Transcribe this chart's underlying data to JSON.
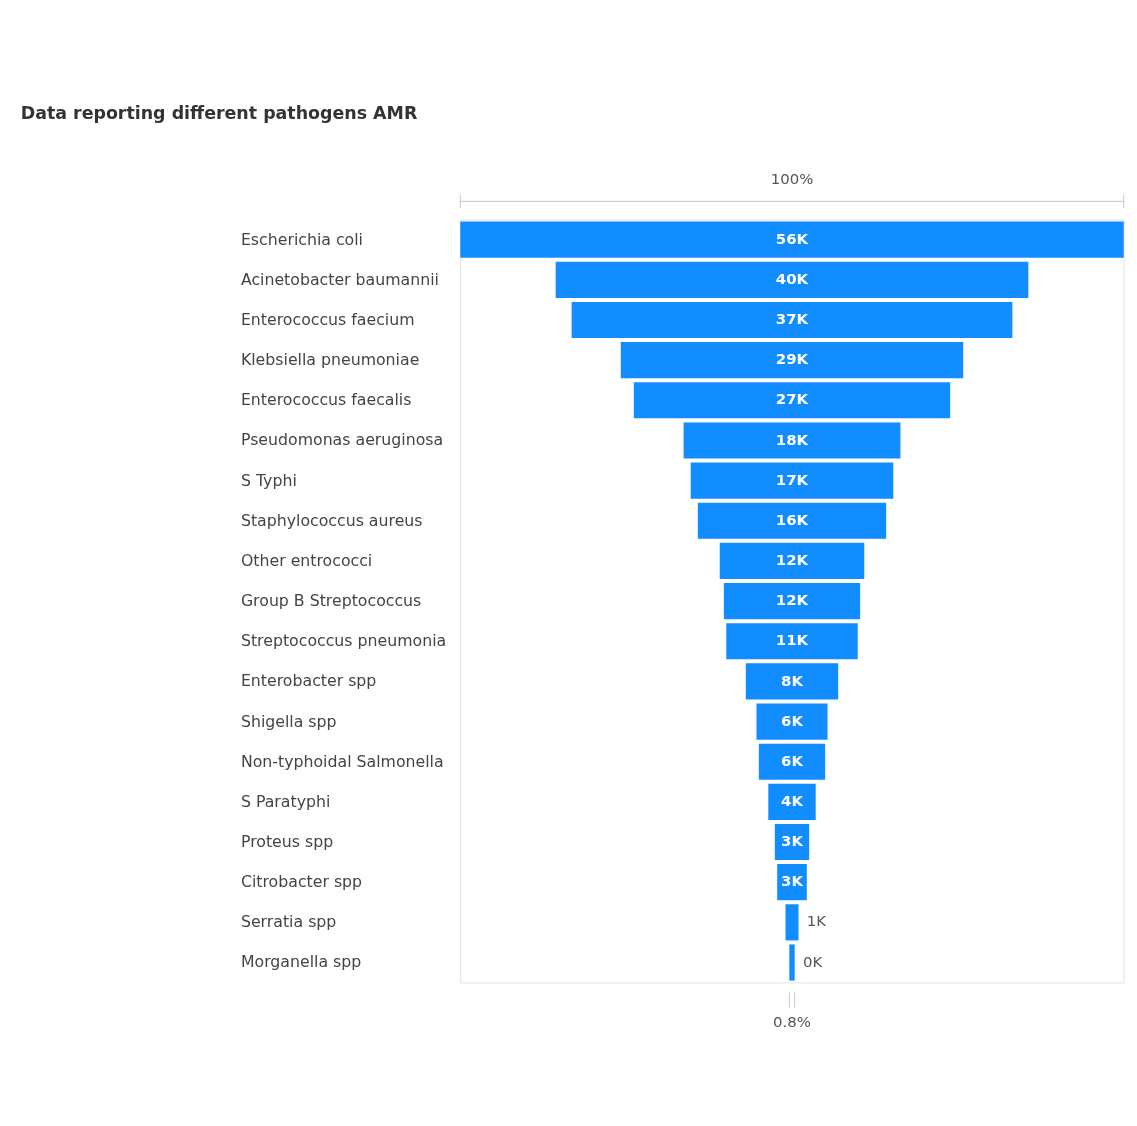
{
  "chart_data": {
    "type": "other",
    "title": "Data reporting different pathogens AMR",
    "categories": [
      "Escherichia coli",
      "Acinetobacter baumannii",
      "Enterococcus faecium",
      "Klebsiella pneumoniae",
      "Enterococcus faecalis",
      "Pseudomonas aeruginosa",
      "S Typhi",
      "Staphylococcus aureus",
      "Other entrococci",
      "Group B Streptococcus",
      "Streptococcus pneumonia",
      "Enterobacter spp",
      "Shigella spp",
      "Non-typhoidal Salmonella",
      "S Paratyphi",
      "Proteus spp",
      "Citrobacter spp",
      "Serratia spp",
      "Morganella spp"
    ],
    "values": [
      56,
      39.9,
      37.2,
      28.9,
      26.7,
      18.3,
      17.1,
      15.9,
      12.2,
      11.5,
      11.1,
      7.8,
      6.0,
      5.6,
      4.0,
      2.9,
      2.5,
      1.1,
      0.45
    ],
    "value_labels": [
      "56K",
      "40K",
      "37K",
      "29K",
      "27K",
      "18K",
      "17K",
      "16K",
      "12K",
      "12K",
      "11K",
      "8K",
      "6K",
      "6K",
      "4K",
      "3K",
      "3K",
      "1K",
      "0K"
    ],
    "color": "#118dff",
    "annotations": [
      "100%",
      "0.8%"
    ]
  }
}
